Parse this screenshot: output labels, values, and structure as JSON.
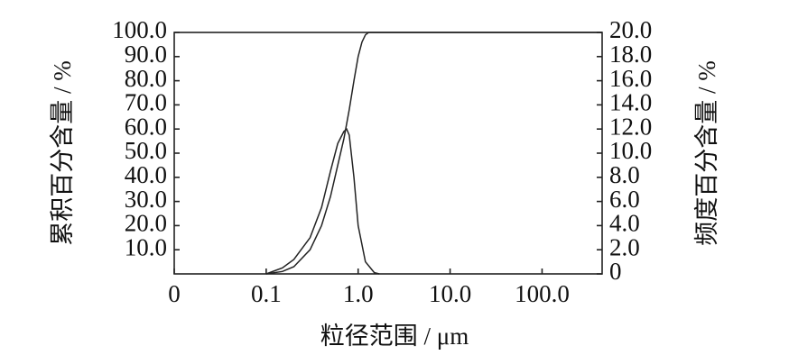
{
  "chart_data": {
    "type": "line",
    "x_label": "粒径范围 / μm",
    "y_label": "累积百分含量 / %",
    "y2_label": "频度百分含量 / %",
    "log_x": true,
    "xlim": [
      0.01,
      450
    ],
    "xticks": [
      {
        "value": 0.01,
        "label": "0"
      },
      0.1,
      {
        "value": 1,
        "label": "1.0"
      },
      {
        "value": 10,
        "label": "10.0"
      },
      {
        "value": 100,
        "label": "100.0"
      }
    ],
    "ylim": [
      0,
      100
    ],
    "yticks": [
      {
        "value": 10,
        "label": "10.0"
      },
      {
        "value": 20,
        "label": "20.0"
      },
      {
        "value": 30,
        "label": "30.0"
      },
      {
        "value": 40,
        "label": "40.0"
      },
      {
        "value": 50,
        "label": "50.0"
      },
      {
        "value": 60,
        "label": "60.0"
      },
      {
        "value": 70,
        "label": "70.0"
      },
      {
        "value": 80,
        "label": "80.0"
      },
      {
        "value": 90,
        "label": "90.0"
      },
      {
        "value": 100,
        "label": "100.0"
      }
    ],
    "y2lim": [
      0,
      20
    ],
    "y2ticks": [
      0,
      {
        "value": 2,
        "label": "2.0"
      },
      {
        "value": 4,
        "label": "4.0"
      },
      {
        "value": 6,
        "label": "6.0"
      },
      {
        "value": 8,
        "label": "8.0"
      },
      {
        "value": 10,
        "label": "10.0"
      },
      {
        "value": 12,
        "label": "12.0"
      },
      {
        "value": 14,
        "label": "14.0"
      },
      {
        "value": 16,
        "label": "16.0"
      },
      {
        "value": 18,
        "label": "18.0"
      },
      {
        "value": 20,
        "label": "20.0"
      }
    ],
    "series": [
      {
        "color": "#222222",
        "axis": "y",
        "x": [
          0.1,
          0.15,
          0.2,
          0.3,
          0.4,
          0.5,
          0.6,
          0.7,
          0.8,
          0.9,
          1.0,
          1.1,
          1.2,
          1.3,
          1.5,
          450
        ],
        "values": [
          0,
          1,
          3,
          10,
          20,
          32,
          45,
          56,
          68,
          80,
          90,
          96,
          99,
          100,
          100,
          100
        ]
      },
      {
        "color": "#222222",
        "axis": "y2",
        "x": [
          0.1,
          0.15,
          0.2,
          0.3,
          0.4,
          0.5,
          0.6,
          0.7,
          0.75,
          0.8,
          0.9,
          1.0,
          1.2,
          1.5,
          1.7
        ],
        "values": [
          0,
          0.5,
          1.2,
          3,
          5.5,
          8.5,
          10.8,
          11.8,
          12,
          11.5,
          8,
          4,
          1,
          0.1,
          0
        ]
      }
    ]
  }
}
